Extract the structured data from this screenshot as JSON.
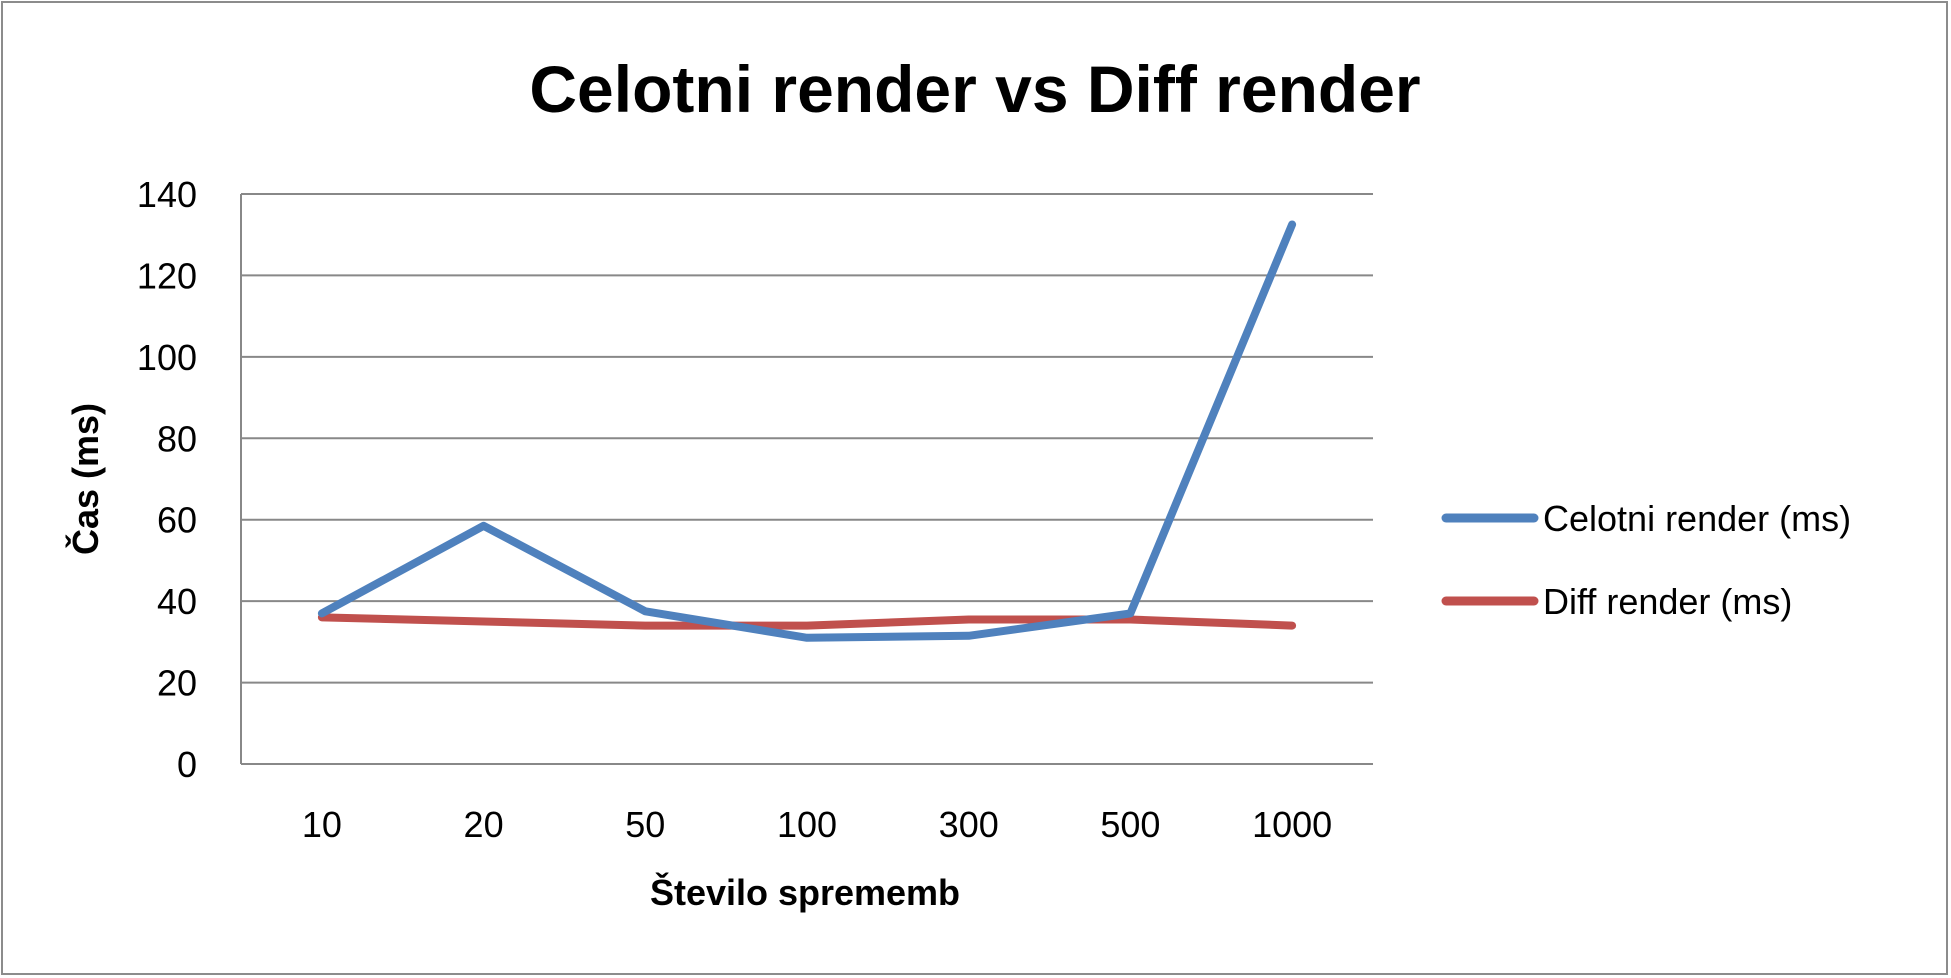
{
  "chart_data": {
    "type": "line",
    "title": "Celotni render vs Diff render",
    "xlabel": "Število sprememb",
    "ylabel": "Čas (ms)",
    "categories": [
      "10",
      "20",
      "50",
      "100",
      "300",
      "500",
      "1000"
    ],
    "ylim": [
      0,
      140
    ],
    "yticks": [
      0,
      20,
      40,
      60,
      80,
      100,
      120,
      140
    ],
    "grid": true,
    "legend_position": "right",
    "series": [
      {
        "name": "Celotni render (ms)",
        "color": "#4f81bd",
        "values": [
          37,
          58.5,
          37.5,
          31,
          31.5,
          37,
          132.5
        ]
      },
      {
        "name": "Diff render (ms)",
        "color": "#c0504d",
        "values": [
          36,
          35,
          34,
          34,
          35.5,
          35.5,
          34
        ]
      }
    ]
  }
}
